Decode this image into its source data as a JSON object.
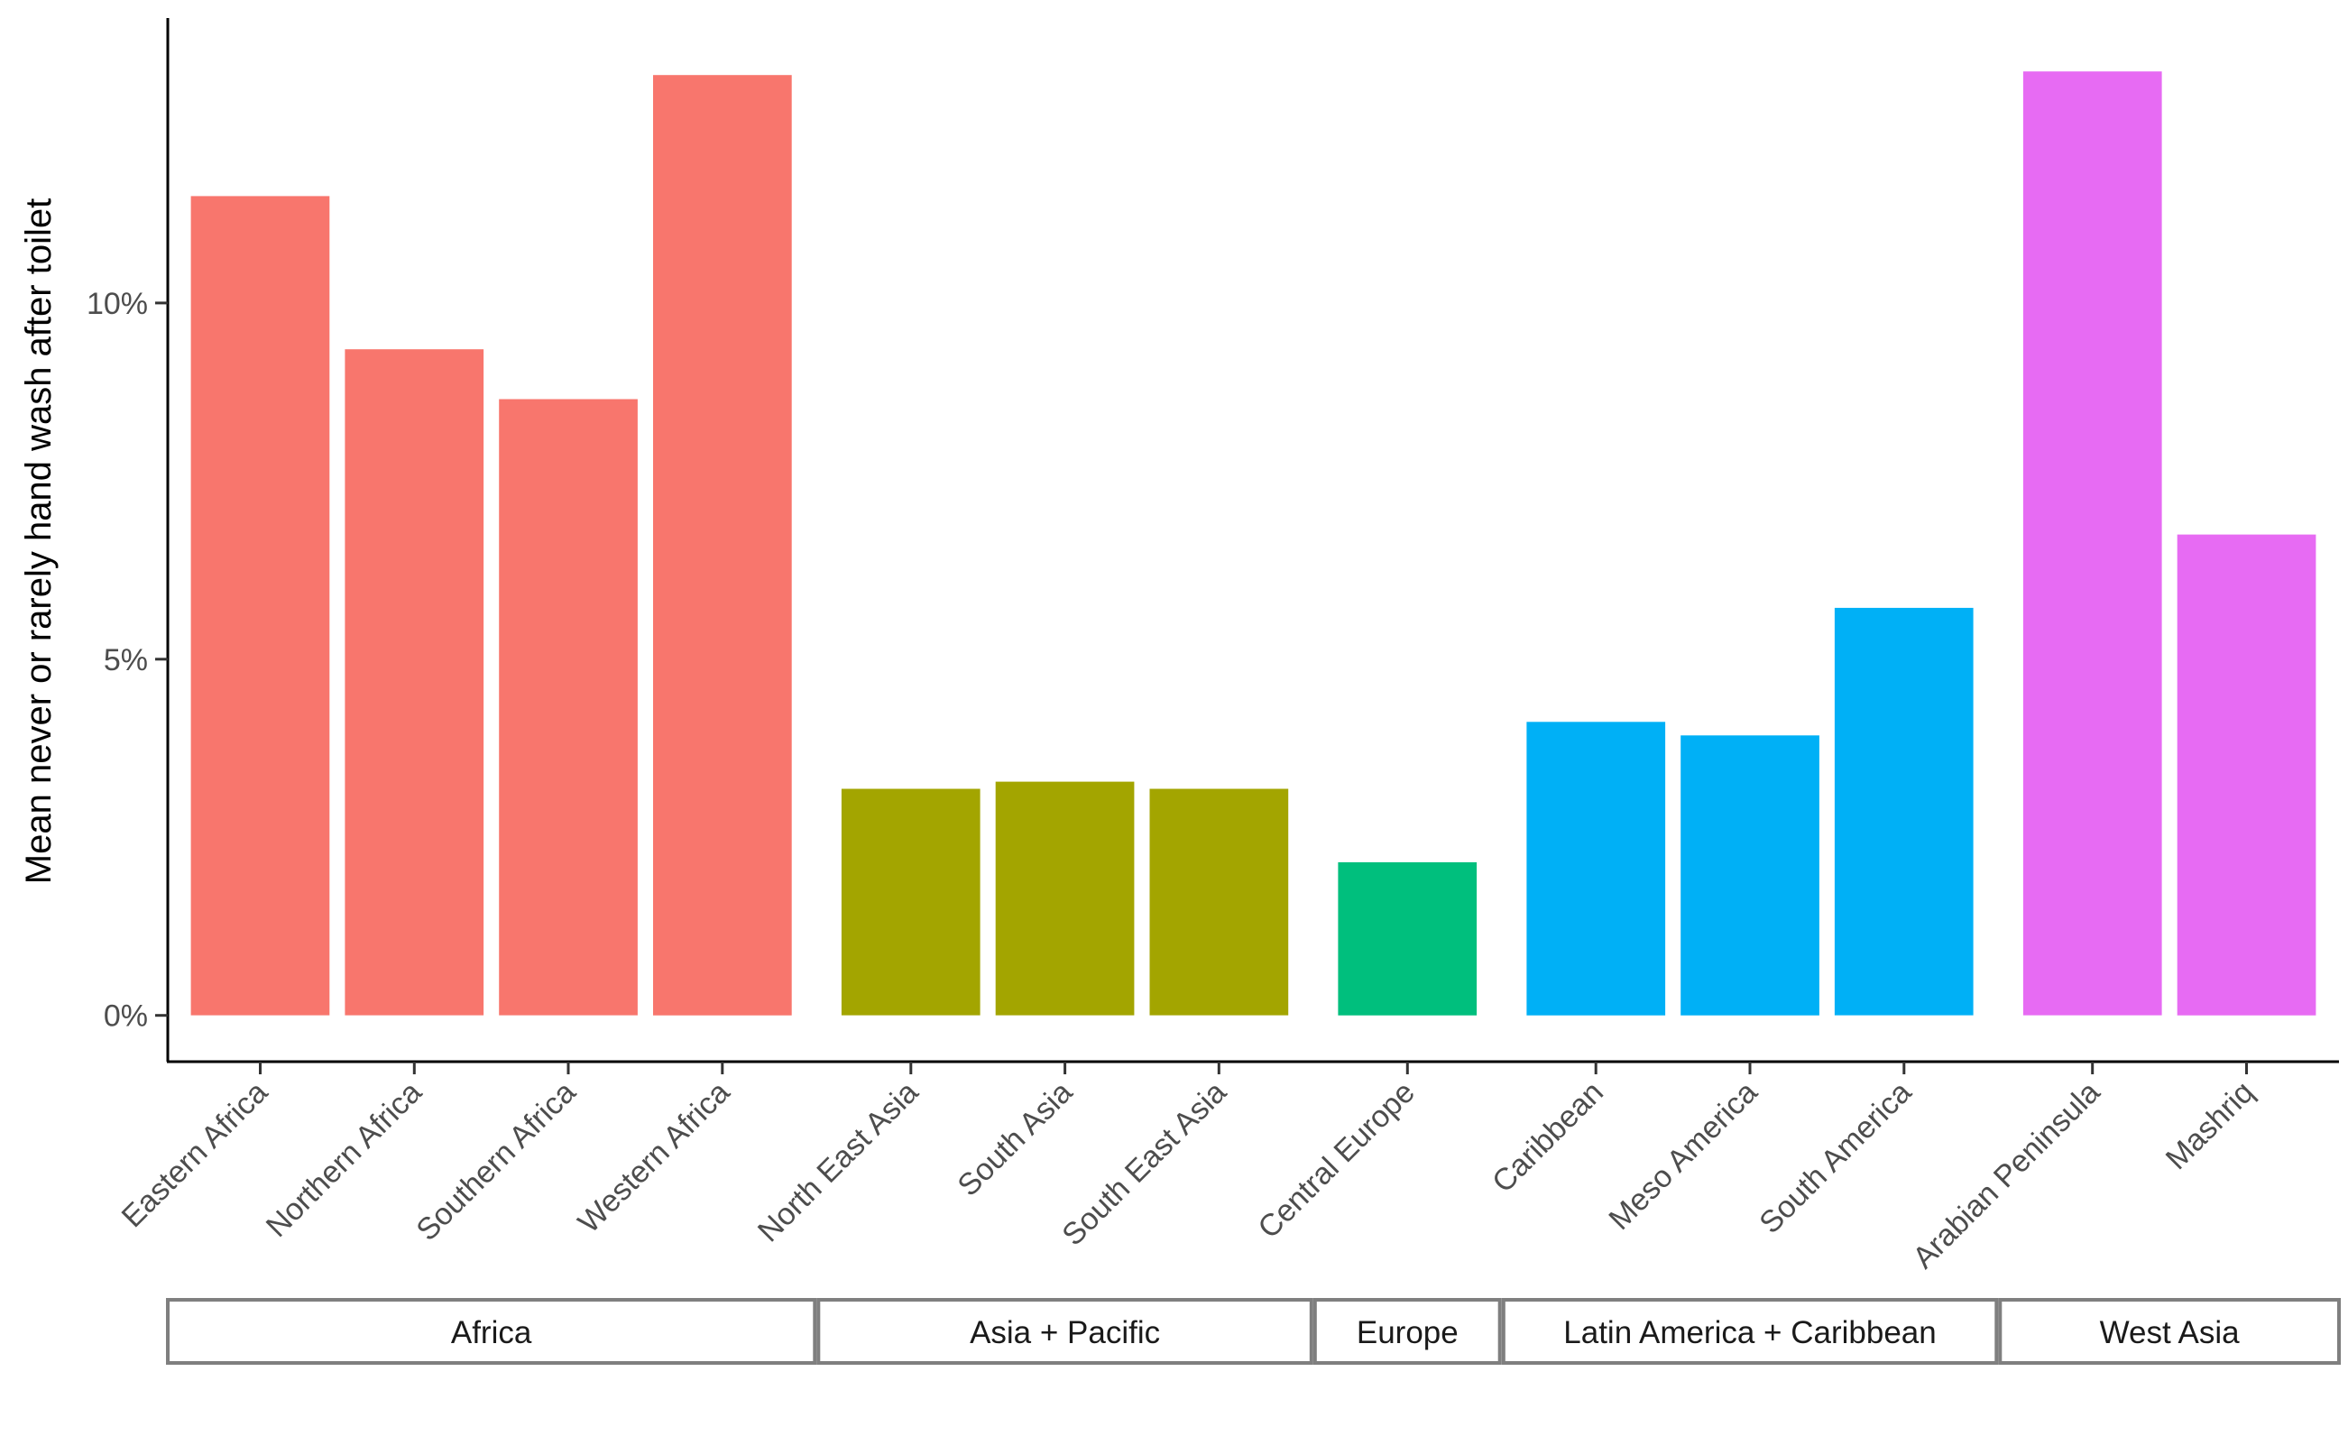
{
  "chart_data": {
    "type": "bar",
    "ylabel": "Mean never or rarely hand wash after toilet",
    "xlabel": "",
    "ylim": [
      -0.65,
      14.0
    ],
    "yticks": [
      0,
      5,
      10
    ],
    "ytick_labels": [
      "0%",
      "5%",
      "10%"
    ],
    "grid": false,
    "legend": "none",
    "facets": [
      {
        "name": "Africa",
        "color": "#F8766D",
        "categories": [
          "Eastern Africa",
          "Northern Africa",
          "Southern Africa",
          "Western Africa"
        ],
        "values": [
          11.5,
          9.35,
          8.65,
          13.2
        ]
      },
      {
        "name": "Asia + Pacific",
        "color": "#A3A500",
        "categories": [
          "North East Asia",
          "South Asia",
          "South East Asia"
        ],
        "values": [
          3.18,
          3.28,
          3.18
        ]
      },
      {
        "name": "Europe",
        "color": "#00BF7D",
        "categories": [
          "Central Europe"
        ],
        "values": [
          2.15
        ]
      },
      {
        "name": "Latin America + Caribbean",
        "color": "#00B0F6",
        "categories": [
          "Caribbean",
          "Meso America",
          "South America"
        ],
        "values": [
          4.12,
          3.93,
          5.72
        ]
      },
      {
        "name": "West Asia",
        "color": "#E76BF3",
        "categories": [
          "Arabian Peninsula",
          "Mashriq"
        ],
        "values": [
          13.25,
          6.75
        ]
      }
    ]
  }
}
